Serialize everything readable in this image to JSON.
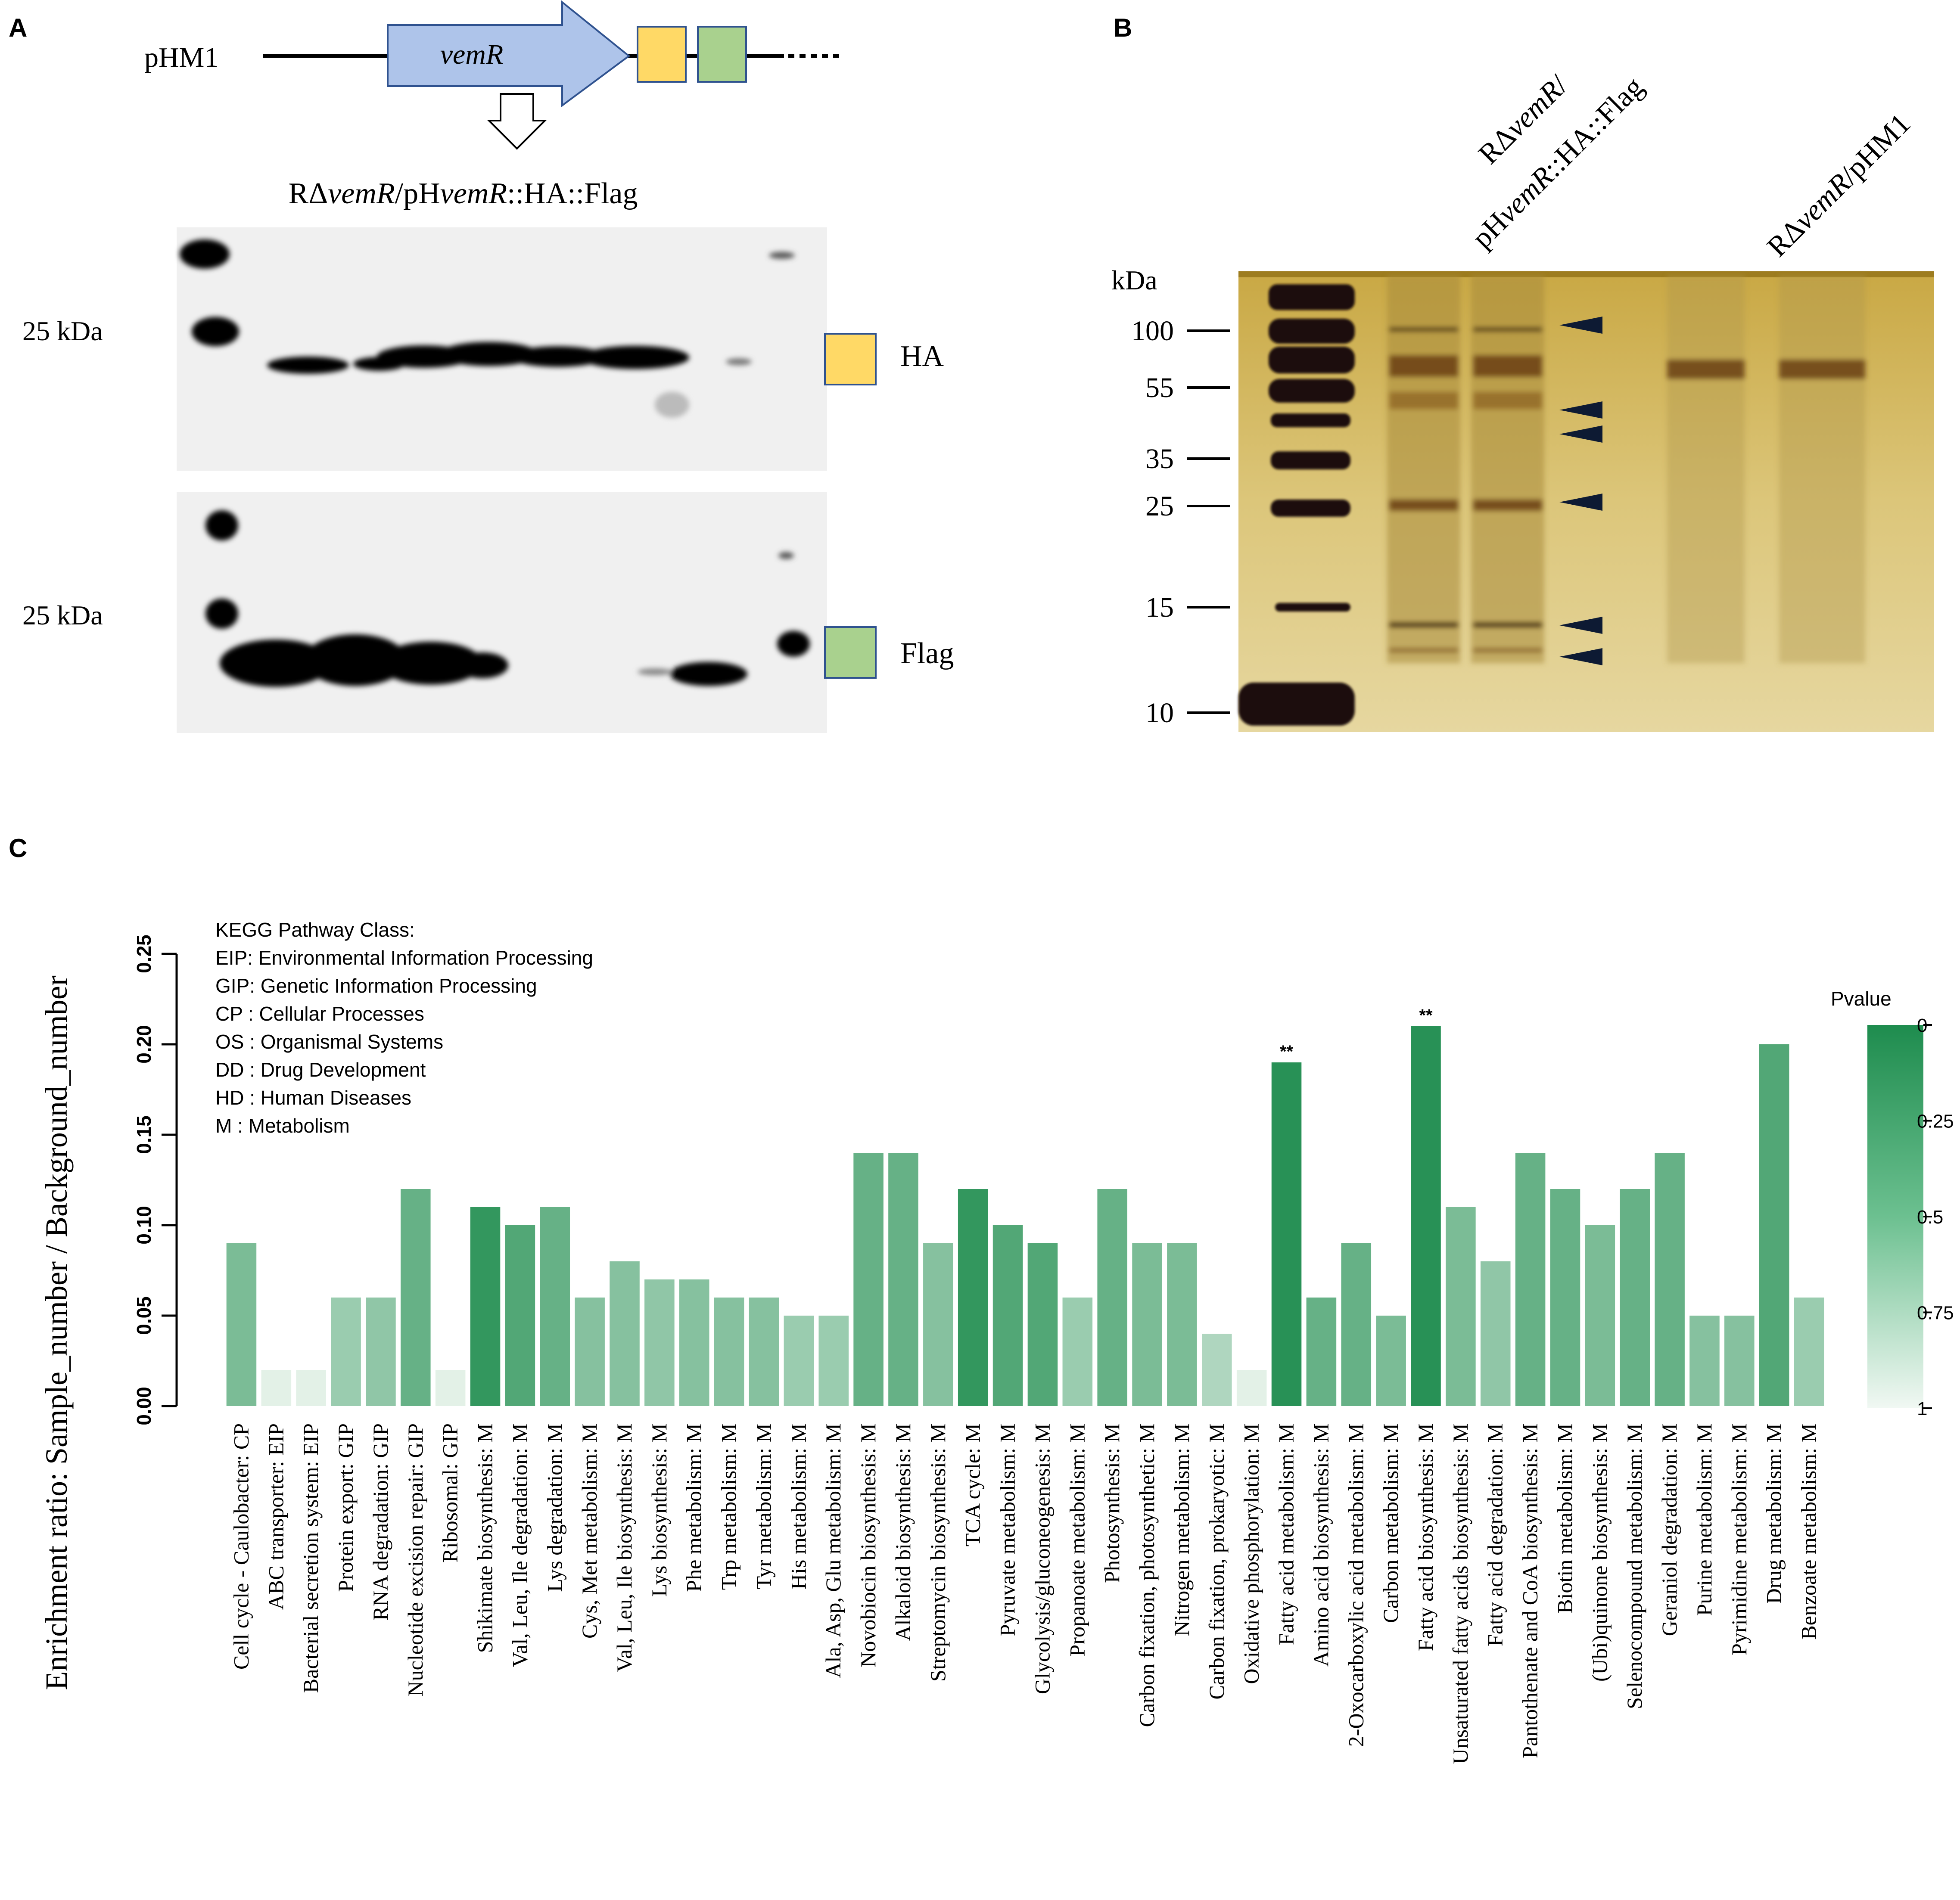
{
  "panel_a": {
    "letter": "A",
    "plasmid": "pHM1",
    "gene": "vemR",
    "strain": {
      "prefix": "RΔ",
      "gene1": "vemR",
      "mid": "/pH",
      "gene2": "vemR",
      "suffix": "::HA::Flag"
    },
    "blot_top": {
      "size_label": "25 kDa",
      "tag_label": "HA",
      "tag_color": "#ffd966"
    },
    "blot_bottom": {
      "size_label": "25 kDa",
      "tag_label": "Flag",
      "tag_color": "#a9d18e"
    }
  },
  "panel_b": {
    "letter": "B",
    "unit": "kDa",
    "markers": [
      "100",
      "55",
      "35",
      "25",
      "15",
      "10"
    ],
    "lane1": {
      "prefix": "RΔ",
      "gene": "vemR",
      "slash": "/"
    },
    "lane1_line2": {
      "prefix": "pH",
      "gene": "vemR",
      "suffix": "::HA::Flag"
    },
    "lane2": {
      "prefix": "RΔ",
      "gene": "vemR",
      "suffix": "/pHM1"
    }
  },
  "panel_c": {
    "letter": "C",
    "legend_lines": [
      "KEGG Pathway Class:",
      "EIP: Environmental Information Processing",
      "GIP: Genetic Information Processing",
      "CP : Cellular Processes",
      "OS : Organismal Systems",
      "DD : Drug Development",
      "HD : Human Diseases",
      "M   : Metabolism"
    ],
    "colorbar": {
      "title": "Pvalue",
      "ticks": [
        "0",
        "0.25",
        "0.5",
        "0.75",
        "1"
      ]
    }
  },
  "chart_data": {
    "type": "bar",
    "ylabel": "Enrichment ratio: Sample_number / Background_number",
    "ylim": [
      0,
      0.25
    ],
    "yticks": [
      "0.00",
      "0.05",
      "0.10",
      "0.15",
      "0.20",
      "0.25"
    ],
    "categories": [
      "Cell cycle - Caulobacter:  CP",
      "ABC transporter:  EIP",
      "Bacterial secretion system:  EIP",
      "Protein export:  GIP",
      "RNA degradation:  GIP",
      "Nucleotide excision repair:  GIP",
      "Ribosomal:  GIP",
      "Shikimate biosynthesis:  M",
      "Val, Leu, Ile degradation:  M",
      "Lys degradation:  M",
      "Cys, Met metabolism:  M",
      "Val, Leu, Ile biosynthesis:  M",
      "Lys biosynthesis:  M",
      "Phe metabolism:  M",
      "Trp metabolism:  M",
      "Tyr metabolism:  M",
      "His metabolism:  M",
      "Ala, Asp, Glu metabolism:  M",
      "Novobiocin biosynthesis:  M",
      "Alkaloid biosynthesis:  M",
      "Streptomycin biosynthesis:  M",
      "TCA  cycle:  M",
      "Pyruvate metabolism:  M",
      "Glycolysis/gluconeogenesis:  M",
      "Propanoate metabolism:  M",
      "Photosynthesis:  M",
      "Carbon fixation, photosynthetic:  M",
      "Nitrogen metabolism:  M",
      "Carbon fixation, prokaryotic:  M",
      "Oxidative phosphorylation:  M",
      "Fatty acid metabolism:  M",
      "Amino acid biosynthesis:  M",
      "2-Oxocarboxylic acid metabolism:  M",
      "Carbon metabolism:  M",
      "Fatty acid biosynthesis:  M",
      "Unsaturated fatty acids biosynthesis:  M",
      "Fatty acid degradation:  M",
      "Pantothenate and CoA biosynthesis:  M",
      "Biotin metabolism:  M",
      "(Ubi)quinone biosynthesis:  M",
      "Selenocompound metabolism:  M",
      "Geraniol degradation:  M",
      "Purine metabolism:  M",
      "Pyrimidine metabolism:  M",
      "Drug metabolism:  M",
      "Benzoate metabolism:  M"
    ],
    "values": [
      0.09,
      0.02,
      0.02,
      0.06,
      0.06,
      0.12,
      0.02,
      0.11,
      0.1,
      0.11,
      0.06,
      0.08,
      0.07,
      0.07,
      0.06,
      0.06,
      0.05,
      0.05,
      0.14,
      0.14,
      0.09,
      0.12,
      0.1,
      0.09,
      0.06,
      0.12,
      0.09,
      0.09,
      0.04,
      0.02,
      0.19,
      0.06,
      0.09,
      0.05,
      0.21,
      0.11,
      0.08,
      0.14,
      0.12,
      0.1,
      0.12,
      0.14,
      0.05,
      0.05,
      0.2,
      0.06
    ],
    "pvalues": [
      0.45,
      0.95,
      0.95,
      0.6,
      0.55,
      0.35,
      0.95,
      0.1,
      0.25,
      0.35,
      0.5,
      0.5,
      0.55,
      0.5,
      0.5,
      0.5,
      0.6,
      0.6,
      0.35,
      0.35,
      0.5,
      0.1,
      0.25,
      0.25,
      0.6,
      0.35,
      0.45,
      0.45,
      0.7,
      0.95,
      0.05,
      0.35,
      0.35,
      0.45,
      0.05,
      0.45,
      0.55,
      0.35,
      0.35,
      0.45,
      0.35,
      0.35,
      0.5,
      0.5,
      0.25,
      0.6
    ],
    "significance": [
      "",
      "",
      "",
      "",
      "",
      "",
      "",
      "",
      "",
      "",
      "",
      "",
      "",
      "",
      "",
      "",
      "",
      "",
      "",
      "",
      "",
      "",
      "",
      "",
      "",
      "",
      "",
      "",
      "",
      "",
      "**",
      "",
      "",
      "",
      "**",
      "",
      "",
      "",
      "",
      "",
      "",
      "",
      "",
      "",
      "",
      ""
    ],
    "colors": {
      "low_p": "#1e8c4e",
      "high_p": "#edf6ef"
    }
  }
}
